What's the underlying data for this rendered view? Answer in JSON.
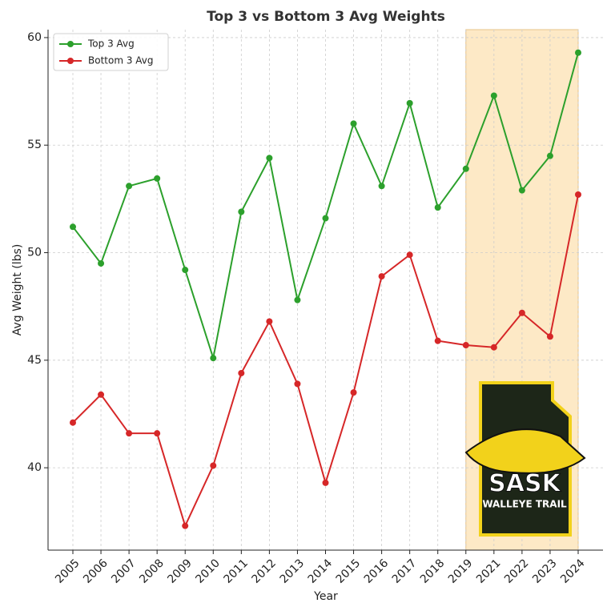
{
  "chart_data": {
    "type": "line",
    "title": "Top 3 vs Bottom 3 Avg Weights",
    "x_label": "Year",
    "y_label": "Avg Weight (lbs)",
    "categories": [
      "2005",
      "2006",
      "2007",
      "2008",
      "2009",
      "2010",
      "2011",
      "2012",
      "2013",
      "2014",
      "2015",
      "2016",
      "2017",
      "2018",
      "2019",
      "2021",
      "2022",
      "2023",
      "2024"
    ],
    "series": [
      {
        "name": "Top 3 Avg",
        "color": "#2ca02c",
        "values": [
          51.2,
          49.5,
          53.1,
          53.45,
          49.2,
          45.1,
          51.9,
          54.4,
          47.8,
          51.6,
          56.0,
          53.1,
          56.95,
          52.1,
          53.9,
          57.3,
          52.9,
          54.5,
          59.3
        ]
      },
      {
        "name": "Bottom 3 Avg",
        "color": "#d62728",
        "values": [
          42.1,
          43.4,
          41.6,
          41.6,
          37.3,
          40.1,
          44.4,
          46.8,
          43.9,
          39.3,
          43.5,
          48.9,
          49.9,
          45.9,
          45.7,
          45.6,
          47.2,
          46.1,
          52.7
        ]
      }
    ],
    "ylim": [
      36.17,
      60.37
    ],
    "yticks": [
      40,
      45,
      50,
      55,
      60
    ],
    "grid": true,
    "legend": "upper left",
    "highlight": {
      "from": "2019",
      "to": "2024",
      "color": "#fde9c6"
    },
    "logo": {
      "text": "SASK",
      "subtext": "WALLEYE TRAIL"
    }
  }
}
